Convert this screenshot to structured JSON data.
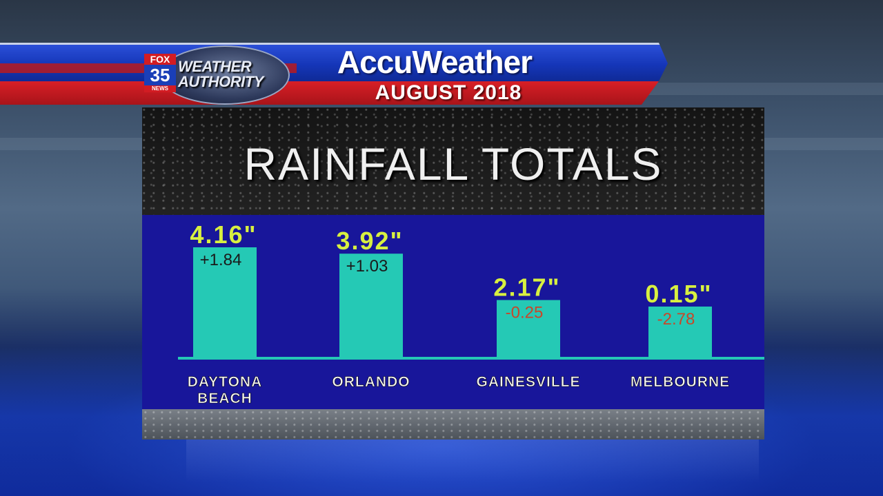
{
  "header": {
    "logo_fox": "FOX",
    "logo_channel": "35",
    "logo_news": "NEWS",
    "logo_weather": "WEATHER",
    "logo_authority": "AUTHORITY",
    "brand": "AccuWeather",
    "period": "AUGUST 2018"
  },
  "colors": {
    "bar": "#25c9b5",
    "value_label": "#d8f040",
    "positive_departure": "#1a1a1a",
    "negative_departure": "#c8472a",
    "chart_bg": "#18169a"
  },
  "chart_data": {
    "type": "bar",
    "title": "RAINFALL TOTALS",
    "categories": [
      "DAYTONA\nBEACH",
      "ORLANDO",
      "GAINESVILLE",
      "MELBOURNE"
    ],
    "values": [
      4.16,
      3.92,
      2.17,
      0.15
    ],
    "value_labels": [
      "4.16\"",
      "3.92\"",
      "2.17\"",
      "0.15\""
    ],
    "departures": [
      "+1.84",
      "+1.03",
      "-0.25",
      "-2.78"
    ]
  }
}
